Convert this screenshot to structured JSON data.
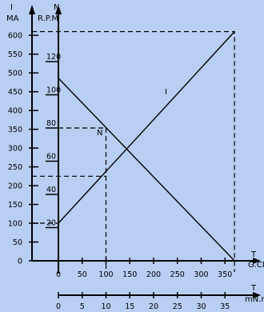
{
  "chart_data": {
    "type": "line",
    "axes": {
      "current": {
        "symbol": "I",
        "unit": "MA",
        "ticks": [
          0,
          50,
          100,
          150,
          200,
          250,
          300,
          350,
          400,
          450,
          500,
          550,
          600
        ],
        "ylim": [
          0,
          610
        ]
      },
      "rpm": {
        "symbol": "N",
        "unit": "R.P.M",
        "ticks": [
          20,
          40,
          60,
          80,
          100,
          120
        ]
      },
      "torque_gcm": {
        "symbol": "T",
        "unit": "G.CM",
        "ticks": [
          0,
          50,
          100,
          150,
          200,
          250,
          300,
          350
        ],
        "xlim": [
          0,
          370
        ]
      },
      "torque_mnm": {
        "symbol": "T",
        "unit": "mN.m",
        "ticks": [
          0,
          5,
          10,
          15,
          20,
          25,
          30,
          35
        ]
      }
    },
    "series": [
      {
        "name": "I",
        "axis": "current",
        "points": [
          [
            0,
            100
          ],
          [
            370,
            610
          ]
        ]
      },
      {
        "name": "N",
        "axis": "rpm",
        "points": [
          [
            0,
            110
          ],
          [
            370,
            0
          ]
        ]
      }
    ],
    "reference_values": {
      "torque_gcm": [
        100,
        370
      ],
      "current_ma": [
        100,
        225,
        610
      ],
      "rpm": [
        80
      ]
    }
  }
}
